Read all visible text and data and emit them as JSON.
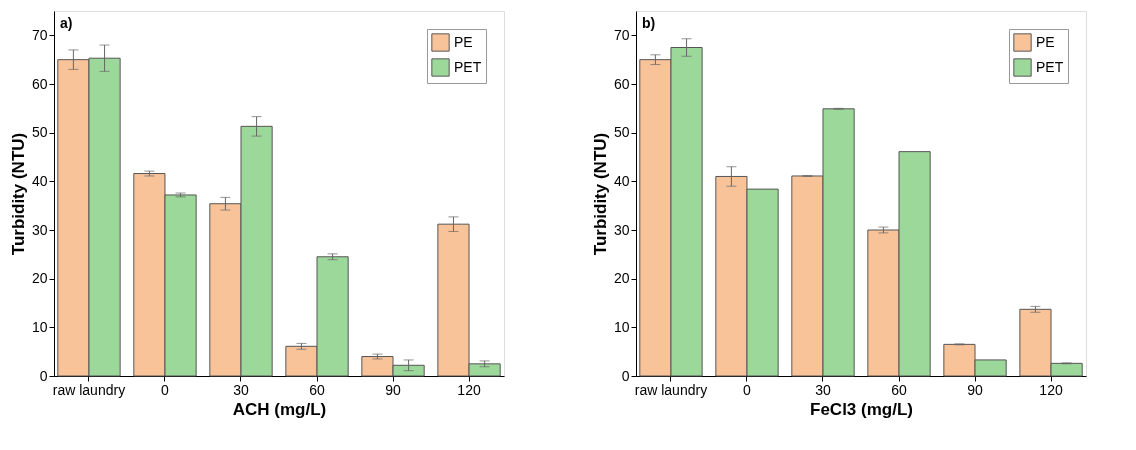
{
  "chart_data": [
    {
      "type": "bar",
      "annotations": [
        "a)"
      ],
      "xlabel": "ACH (mg/L)",
      "ylabel": "Turbidity (NTU)",
      "categories": [
        "raw laundry",
        "0",
        "30",
        "60",
        "90",
        "120"
      ],
      "ylim": [
        0,
        75
      ],
      "yticks": [
        0,
        10,
        20,
        30,
        40,
        50,
        60,
        70
      ],
      "legend": "top right",
      "grid": false,
      "series": [
        {
          "name": "PE",
          "color": "#f9c39a",
          "values": [
            65,
            41.6,
            35.4,
            6.1,
            4.0,
            31.2
          ],
          "errors": [
            2,
            0.5,
            1.3,
            0.6,
            0.5,
            1.5
          ]
        },
        {
          "name": "PET",
          "color": "#9dd89b",
          "values": [
            65.3,
            37.2,
            51.3,
            24.5,
            2.2,
            2.5
          ],
          "errors": [
            2.7,
            0.4,
            2.0,
            0.6,
            1.1,
            0.6
          ]
        }
      ]
    },
    {
      "type": "bar",
      "annotations": [
        "b)"
      ],
      "xlabel": "FeCl3 (mg/L)",
      "ylabel": "Turbidity (NTU)",
      "categories": [
        "raw laundry",
        "0",
        "30",
        "60",
        "90",
        "120"
      ],
      "ylim": [
        0,
        75
      ],
      "yticks": [
        0,
        10,
        20,
        30,
        40,
        50,
        60,
        70
      ],
      "legend": "top right",
      "grid": false,
      "series": [
        {
          "name": "PE",
          "color": "#f9c39a",
          "values": [
            65,
            41,
            41.1,
            30,
            6.5,
            13.7
          ],
          "errors": [
            1,
            2,
            0.1,
            0.6,
            0.1,
            0.6
          ]
        },
        {
          "name": "PET",
          "color": "#9dd89b",
          "values": [
            67.5,
            38.4,
            54.9,
            46.1,
            3.3,
            2.6
          ],
          "errors": [
            1.8,
            null,
            0.1,
            null,
            null,
            0.1
          ]
        }
      ]
    }
  ]
}
